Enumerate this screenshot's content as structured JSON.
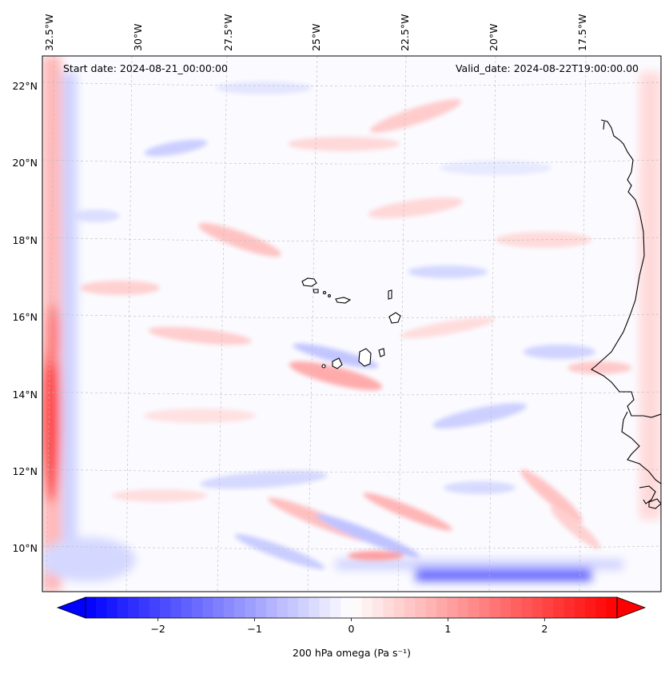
{
  "map": {
    "start_label": "Start date: 2024-08-21_00:00:00",
    "valid_label": "Valid_date: 2024-08-22T19:00:00.00",
    "lon_labels": [
      "32.5°W",
      "30°W",
      "27.5°W",
      "25°W",
      "22.5°W",
      "20°W",
      "17.5°W"
    ],
    "lat_labels": [
      "22°N",
      "20°N",
      "18°N",
      "16°N",
      "14°N",
      "12°N",
      "10°N"
    ]
  },
  "colorbar": {
    "ticks": [
      {
        "value": -2,
        "label": "−2"
      },
      {
        "value": -1,
        "label": "−1"
      },
      {
        "value": 0,
        "label": "0"
      },
      {
        "value": 1,
        "label": "1"
      },
      {
        "value": 2,
        "label": "2"
      }
    ],
    "range": [
      -2.75,
      2.75
    ],
    "label": "200 hPa omega (Pa s⁻¹)",
    "low_color": "#0000ff",
    "mid_color": "#ffffff",
    "high_color": "#ff0000"
  }
}
